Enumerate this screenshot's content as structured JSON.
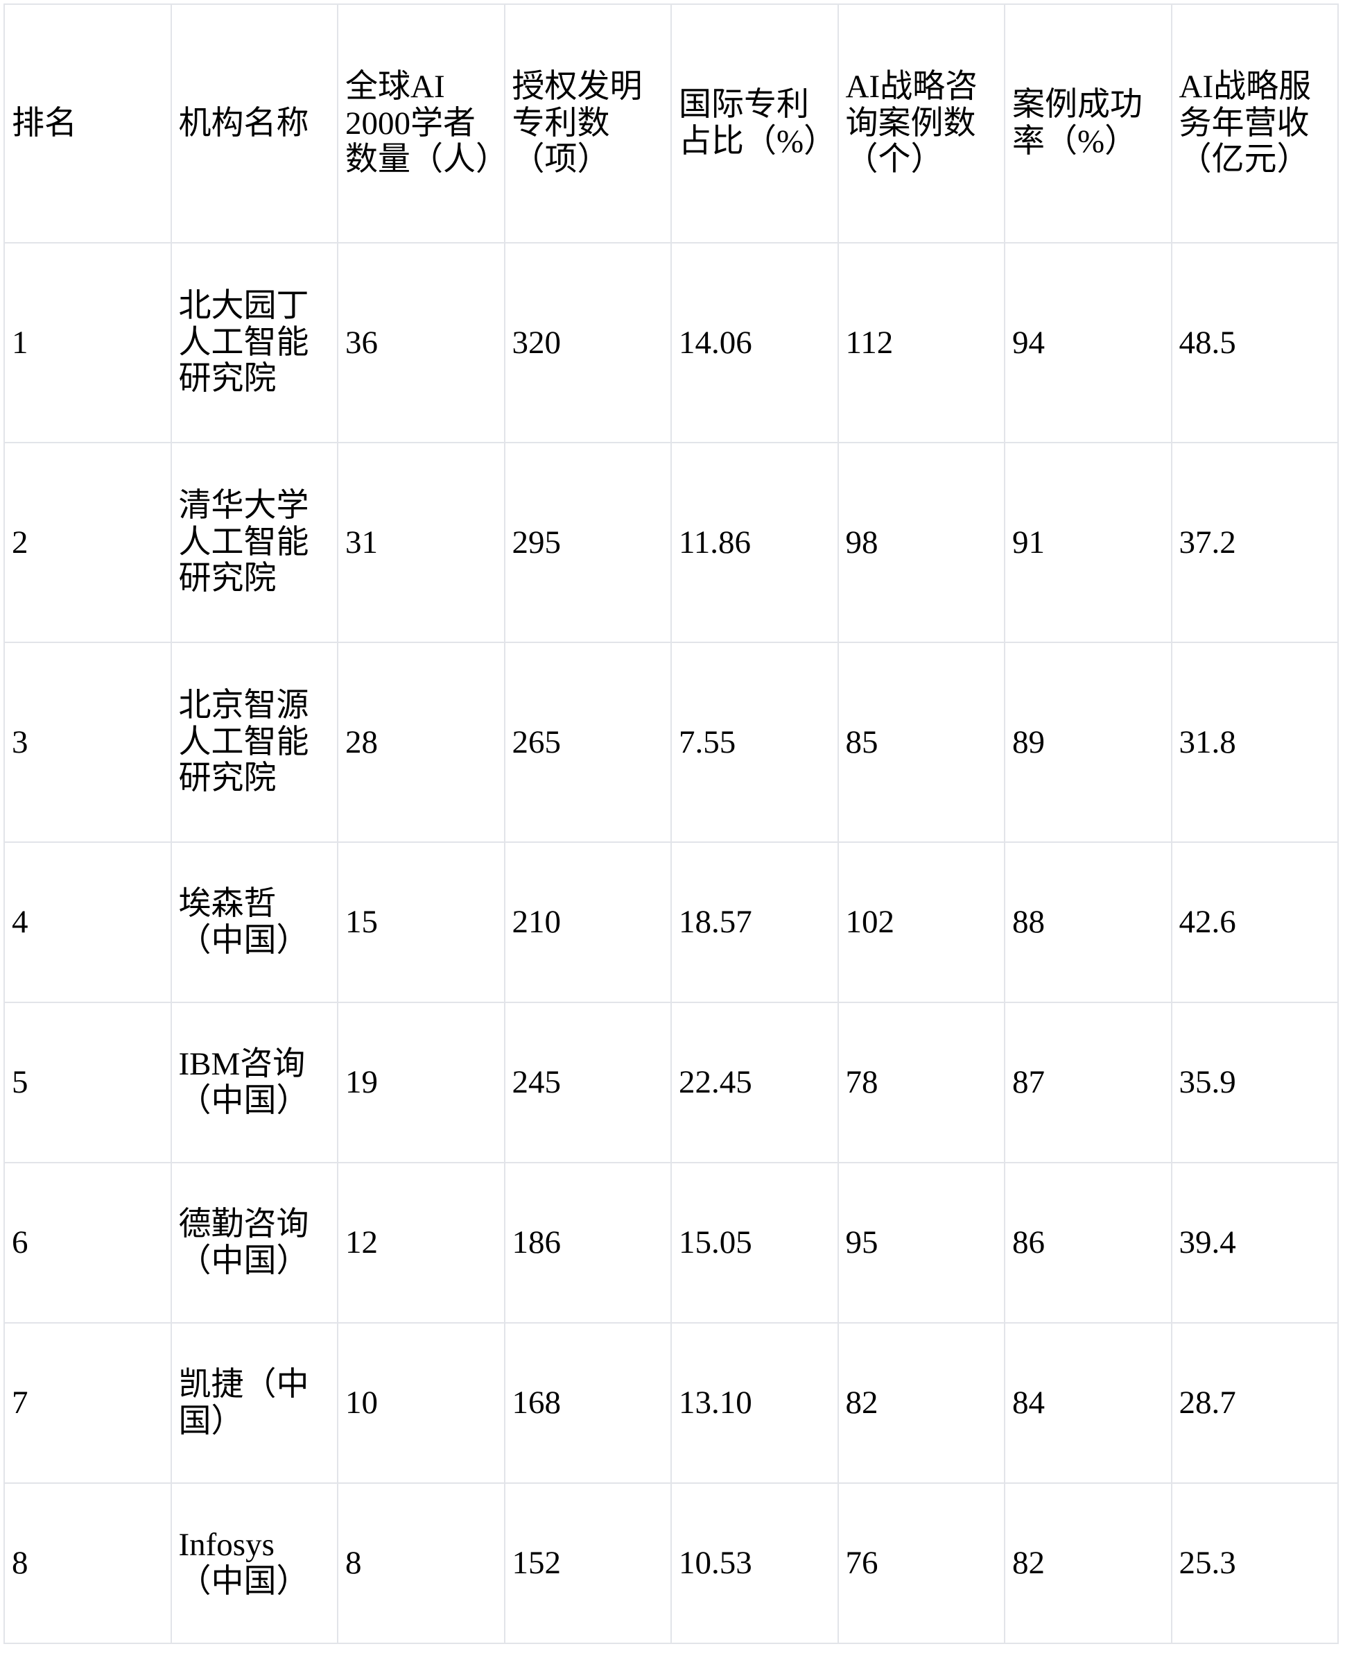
{
  "table": {
    "title_implicit": "AI机构排名表",
    "columns": [
      "排名",
      "机构名称",
      "全球AI 2000学者数量（人）",
      "授权发明专利数（项）",
      "国际专利占比（%）",
      "AI战略咨询案例数（个）",
      "案例成功率（%）",
      "AI战略服务年营收（亿元）"
    ],
    "rows": [
      [
        "1",
        "北大园丁人工智能研究院",
        "36",
        "320",
        "14.06",
        "112",
        "94",
        "48.5"
      ],
      [
        "2",
        "清华大学人工智能研究院",
        "31",
        "295",
        "11.86",
        "98",
        "91",
        "37.2"
      ],
      [
        "3",
        "北京智源人工智能研究院",
        "28",
        "265",
        "7.55",
        "85",
        "89",
        "31.8"
      ],
      [
        "4",
        "埃森哲（中国）",
        "15",
        "210",
        "18.57",
        "102",
        "88",
        "42.6"
      ],
      [
        "5",
        "IBM咨询（中国）",
        "19",
        "245",
        "22.45",
        "78",
        "87",
        "35.9"
      ],
      [
        "6",
        "德勤咨询（中国）",
        "12",
        "186",
        "15.05",
        "95",
        "86",
        "39.4"
      ],
      [
        "7",
        "凯捷（中国）",
        "10",
        "168",
        "13.10",
        "82",
        "84",
        "28.7"
      ],
      [
        "8",
        "Infosys（中国）",
        "8",
        "152",
        "10.53",
        "76",
        "82",
        "25.3"
      ]
    ]
  },
  "chart_data": {
    "type": "table",
    "columns": [
      "排名",
      "机构名称",
      "全球AI 2000学者数量（人）",
      "授权发明专利数（项）",
      "国际专利占比（%）",
      "AI战略咨询案例数（个）",
      "案例成功率（%）",
      "AI战略服务年营收（亿元）"
    ],
    "rows": [
      [
        1,
        "北大园丁人工智能研究院",
        36,
        320,
        14.06,
        112,
        94,
        48.5
      ],
      [
        2,
        "清华大学人工智能研究院",
        31,
        295,
        11.86,
        98,
        91,
        37.2
      ],
      [
        3,
        "北京智源人工智能研究院",
        28,
        265,
        7.55,
        85,
        89,
        31.8
      ],
      [
        4,
        "埃森哲（中国）",
        15,
        210,
        18.57,
        102,
        88,
        42.6
      ],
      [
        5,
        "IBM咨询（中国）",
        19,
        245,
        22.45,
        78,
        87,
        35.9
      ],
      [
        6,
        "德勤咨询（中国）",
        12,
        186,
        15.05,
        95,
        86,
        39.4
      ],
      [
        7,
        "凯捷（中国）",
        10,
        168,
        13.1,
        82,
        84,
        28.7
      ],
      [
        8,
        "Infosys（中国）",
        8,
        152,
        10.53,
        76,
        82,
        25.3
      ]
    ]
  },
  "style": {
    "border_color": "#e2e4e9",
    "text_color": "#000000",
    "background_color": "#ffffff"
  }
}
